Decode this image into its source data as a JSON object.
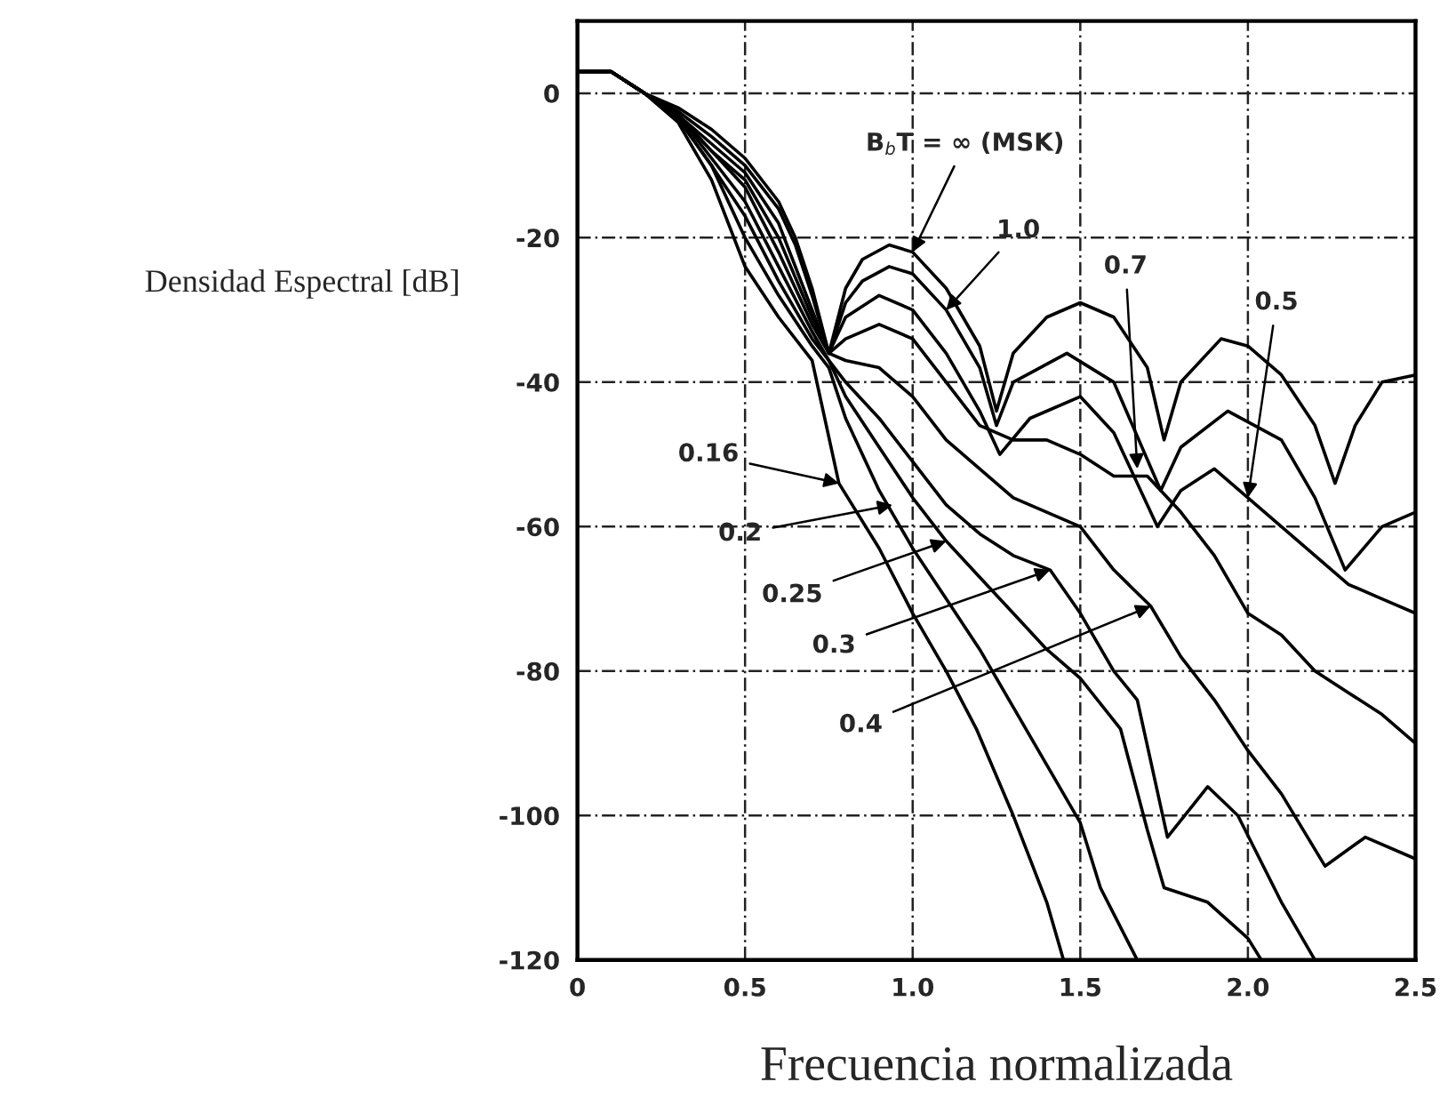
{
  "chart_data": {
    "type": "line",
    "xlabel": "Frecuencia normalizada",
    "ylabel": "Densidad Espectral [dB]",
    "xlim": [
      0,
      2.5
    ],
    "ylim": [
      -120,
      10
    ],
    "xticks": [
      {
        "value": 0,
        "label": "0"
      },
      {
        "value": 0.5,
        "label": "0.5"
      },
      {
        "value": 1.0,
        "label": "1.0"
      },
      {
        "value": 1.5,
        "label": "1.5"
      },
      {
        "value": 2.0,
        "label": "2.0"
      },
      {
        "value": 2.5,
        "label": "2.5"
      }
    ],
    "yticks": [
      0,
      -20,
      -40,
      -60,
      -80,
      -100,
      -120
    ],
    "grid": true,
    "marker": "none",
    "line_style": "solid",
    "series": [
      {
        "color": "#000000",
        "x": [
          0,
          0.1,
          0.2,
          0.3,
          0.4,
          0.5,
          0.6,
          0.65,
          0.7,
          0.75,
          0.8,
          0.85,
          0.93,
          1.0,
          1.1,
          1.2,
          1.25,
          1.3,
          1.4,
          1.5,
          1.6,
          1.7,
          1.75,
          1.8,
          1.92,
          2.0,
          2.1,
          2.2,
          2.26,
          2.32,
          2.4,
          2.5
        ],
        "values": [
          3,
          3,
          0,
          -2,
          -5,
          -9,
          -15,
          -20,
          -27,
          -36,
          -27,
          -23,
          -21,
          -22,
          -27,
          -35,
          -44,
          -36,
          -31,
          -29,
          -31,
          -38,
          -48,
          -40,
          -34,
          -35,
          -39,
          -46,
          -54,
          -46,
          -40,
          -39
        ]
      },
      {
        "color": "#000000",
        "x": [
          0,
          0.1,
          0.2,
          0.3,
          0.4,
          0.5,
          0.6,
          0.65,
          0.7,
          0.75,
          0.8,
          0.85,
          0.93,
          1.0,
          1.1,
          1.2,
          1.25,
          1.3,
          1.46,
          1.6,
          1.74,
          1.8,
          1.94,
          2.1,
          2.2,
          2.29,
          2.4,
          2.5
        ],
        "values": [
          3,
          3,
          0,
          -2.5,
          -6,
          -10,
          -16,
          -21,
          -28,
          -36,
          -29,
          -26,
          -24,
          -25,
          -30,
          -38,
          -46,
          -40,
          -36,
          -40,
          -55,
          -49,
          -44,
          -48,
          -56,
          -66,
          -60,
          -58
        ]
      },
      {
        "color": "#000000",
        "x": [
          0,
          0.1,
          0.2,
          0.3,
          0.4,
          0.5,
          0.6,
          0.7,
          0.75,
          0.8,
          0.9,
          1.0,
          1.1,
          1.2,
          1.26,
          1.35,
          1.5,
          1.6,
          1.73,
          1.8,
          1.9,
          2.0,
          2.1,
          2.2,
          2.3,
          2.4,
          2.5
        ],
        "values": [
          3,
          3,
          0,
          -3,
          -7,
          -11,
          -18,
          -30,
          -36,
          -31,
          -28,
          -30,
          -36,
          -44,
          -50,
          -45,
          -42,
          -47,
          -60,
          -55,
          -52,
          -56,
          -60,
          -64,
          -68,
          -70,
          -72
        ]
      },
      {
        "color": "#000000",
        "x": [
          0,
          0.1,
          0.2,
          0.3,
          0.4,
          0.5,
          0.6,
          0.7,
          0.75,
          0.8,
          0.9,
          1.0,
          1.1,
          1.2,
          1.3,
          1.4,
          1.5,
          1.6,
          1.7,
          1.8,
          1.9,
          2.0,
          2.1,
          2.2,
          2.3,
          2.4,
          2.5
        ],
        "values": [
          3,
          3,
          0,
          -3,
          -8,
          -12,
          -20,
          -31,
          -36,
          -34,
          -32,
          -34,
          -40,
          -46,
          -48,
          -48,
          -50,
          -53,
          -53,
          -58,
          -64,
          -72,
          -75,
          -80,
          -83,
          -86,
          -90
        ]
      },
      {
        "color": "#000000",
        "x": [
          0,
          0.1,
          0.2,
          0.3,
          0.4,
          0.5,
          0.6,
          0.7,
          0.75,
          0.8,
          0.9,
          1.0,
          1.1,
          1.2,
          1.3,
          1.4,
          1.5,
          1.6,
          1.71,
          1.8,
          1.9,
          2.0,
          2.1,
          2.23,
          2.35,
          2.5
        ],
        "values": [
          3,
          3,
          0,
          -3,
          -8,
          -13,
          -22,
          -32,
          -36,
          -37,
          -38,
          -42,
          -48,
          -52,
          -56,
          -58,
          -60,
          -66,
          -71,
          -78,
          -84,
          -91,
          -97,
          -107,
          -103,
          -106
        ]
      },
      {
        "color": "#000000",
        "x": [
          0,
          0.1,
          0.2,
          0.3,
          0.4,
          0.5,
          0.6,
          0.7,
          0.75,
          0.8,
          0.9,
          1.0,
          1.1,
          1.2,
          1.3,
          1.41,
          1.5,
          1.6,
          1.67,
          1.76,
          1.88,
          1.97,
          2.1,
          2.2
        ],
        "values": [
          3,
          3,
          0,
          -3,
          -9,
          -15,
          -24,
          -33,
          -37,
          -40,
          -45,
          -51,
          -57,
          -61,
          -64,
          -66,
          -72,
          -80,
          -84,
          -103,
          -96,
          -100,
          -112,
          -120
        ]
      },
      {
        "color": "#000000",
        "x": [
          0,
          0.1,
          0.2,
          0.3,
          0.4,
          0.5,
          0.6,
          0.7,
          0.75,
          0.8,
          0.9,
          1.0,
          1.1,
          1.2,
          1.3,
          1.4,
          1.5,
          1.62,
          1.7,
          1.75,
          1.88,
          2.0,
          2.04
        ],
        "values": [
          3,
          3,
          0,
          -3.5,
          -10,
          -17,
          -26,
          -34,
          -37,
          -42,
          -49,
          -56,
          -62,
          -67,
          -72,
          -77,
          -81,
          -88,
          -102,
          -110,
          -112,
          -117,
          -120
        ]
      },
      {
        "color": "#000000",
        "x": [
          0,
          0.1,
          0.2,
          0.3,
          0.4,
          0.5,
          0.6,
          0.7,
          0.75,
          0.8,
          0.9,
          1.0,
          1.1,
          1.2,
          1.3,
          1.4,
          1.5,
          1.56,
          1.67
        ],
        "values": [
          3,
          3,
          0,
          -3.5,
          -10,
          -20,
          -28,
          -35,
          -38,
          -45,
          -55,
          -63,
          -70,
          -77,
          -85,
          -93,
          -101,
          -110,
          -120
        ]
      },
      {
        "color": "#000000",
        "x": [
          0,
          0.1,
          0.2,
          0.3,
          0.4,
          0.5,
          0.6,
          0.7,
          0.78,
          0.9,
          1.0,
          1.1,
          1.19,
          1.3,
          1.4,
          1.45
        ],
        "values": [
          3,
          3,
          0,
          -4,
          -12,
          -24,
          -31,
          -37,
          -54,
          -63,
          -72,
          -80,
          -88,
          -100,
          -112,
          -120
        ]
      }
    ],
    "annotations": [
      {
        "text": "B$_{b}$T = ∞ (MSK)",
        "x": 1.0,
        "y": -22
      },
      {
        "text": "1.0",
        "x": 1.1,
        "y": -30
      },
      {
        "text": "0.7",
        "x": 1.67,
        "y": -52
      },
      {
        "text": "0.5",
        "x": 2.0,
        "y": -56
      },
      {
        "text": "0.16",
        "x": 0.78,
        "y": -54
      },
      {
        "text": "0.2",
        "x": 0.94,
        "y": -57
      },
      {
        "text": "0.25",
        "x": 1.1,
        "y": -62
      },
      {
        "text": "0.3",
        "x": 1.41,
        "y": -66
      },
      {
        "text": "0.4",
        "x": 1.71,
        "y": -71
      }
    ]
  }
}
